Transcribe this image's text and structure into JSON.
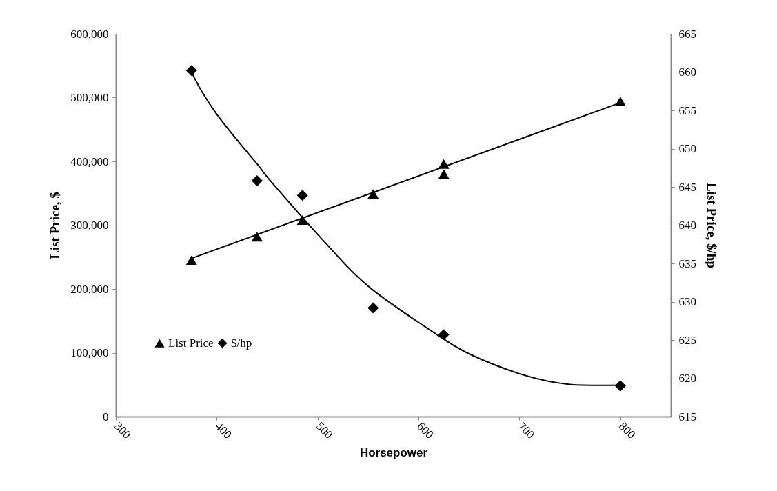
{
  "chart_data": {
    "type": "scatter",
    "xlabel": "Horsepower",
    "ylabel": "List Price, $",
    "y2label": "List Price, $/hp",
    "xlim": [
      300,
      850
    ],
    "xticks": [
      300,
      400,
      500,
      600,
      700,
      800
    ],
    "ylim": [
      0,
      600000
    ],
    "yticks": [
      0,
      {
        "value": 100000,
        "label": "100,000"
      },
      {
        "value": 200000,
        "label": "200,000"
      },
      {
        "value": 300000,
        "label": "300,000"
      },
      {
        "value": 400000,
        "label": "400,000"
      },
      {
        "value": 500000,
        "label": "500,000"
      },
      {
        "value": 600000,
        "label": "600,000"
      }
    ],
    "y2lim": [
      615,
      665
    ],
    "y2ticks": [
      615,
      620,
      625,
      630,
      635,
      640,
      645,
      650,
      655,
      660,
      665
    ],
    "grid": false,
    "legend": "bottom left",
    "series": [
      {
        "name": "List Price",
        "color": "#000000",
        "marker": "triangle",
        "x": [
          375,
          440,
          485,
          555,
          625,
          625,
          800
        ],
        "values": [
          245000,
          282000,
          308000,
          349000,
          396000,
          380000,
          494000
        ]
      },
      {
        "name": "$/hp",
        "color": "#000000",
        "marker": "diamond",
        "axis": "y2",
        "x": [
          375,
          440,
          485,
          555,
          625,
          800
        ],
        "values": [
          660.2,
          645.8,
          643.9,
          629.2,
          625.7,
          619.0
        ]
      },
      {
        "type": "line",
        "color": "#000000",
        "marker": "none",
        "line_style": "solid",
        "x": [
          375,
          800
        ],
        "values": [
          248000,
          492000
        ]
      },
      {
        "type": "line",
        "color": "#000000",
        "marker": "none",
        "line_style": "solid",
        "axis": "y2",
        "x": [
          375,
          400,
          440,
          450,
          485,
          500,
          525,
          555,
          600,
          625,
          650,
          700,
          750,
          800
        ],
        "values": [
          660.0,
          654.5,
          648.0,
          646.3,
          641.0,
          638.8,
          635.2,
          631.5,
          627.3,
          625.1,
          623.2,
          620.6,
          619.2,
          619.1
        ]
      }
    ]
  }
}
